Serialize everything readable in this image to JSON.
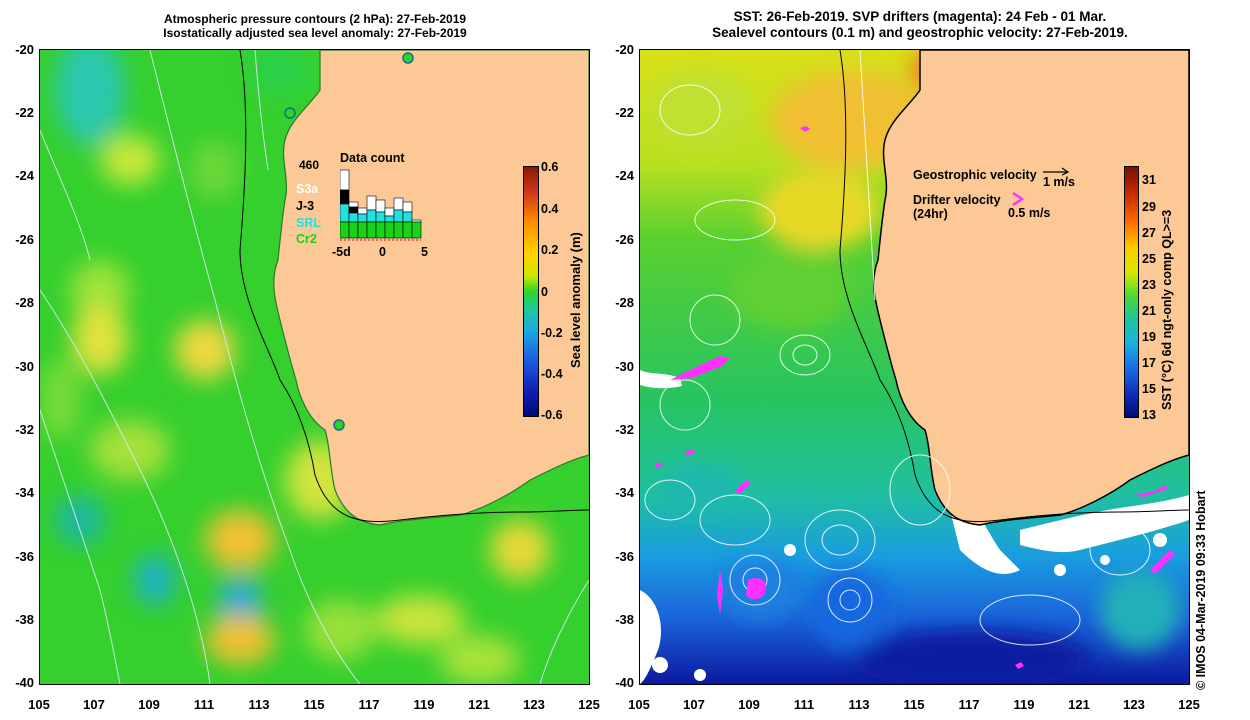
{
  "left_panel": {
    "title_line1": "Atmospheric pressure contours (2 hPa): 27-Feb-2019",
    "title_line2": "Isostatically adjusted sea level anomaly: 27-Feb-2019",
    "colorbar_label": "Sea level anomaly (m)",
    "colorbar_ticks": [
      "0.6",
      "0.4",
      "0.2",
      "0",
      "-0.2",
      "-0.4",
      "-0.6"
    ],
    "data_count": {
      "title": "Data count",
      "total": "460",
      "sources": [
        {
          "label": "S3a",
          "color": "#ffffff"
        },
        {
          "label": "J-3",
          "color": "#000000"
        },
        {
          "label": "SRL",
          "color": "#22e0e0"
        },
        {
          "label": "Cr2",
          "color": "#18d418"
        }
      ],
      "axis_labels": [
        "-5d",
        "0",
        "5"
      ]
    }
  },
  "right_panel": {
    "title_line1": "SST: 26-Feb-2019. SVP drifters (magenta): 24 Feb - 01 Mar.",
    "title_line2": "Sealevel contours (0.1 m) and geostrophic velocity: 27-Feb-2019.",
    "geostrophic_label": "Geostrophic velocity",
    "geostrophic_scale": "1 m/s",
    "drifter_label_line1": "Drifter velocity",
    "drifter_label_line2": "(24hr)",
    "drifter_scale": "0.5 m/s",
    "colorbar_label": "SST (°C) 6d ngt-only comp QL>=3",
    "colorbar_ticks": [
      "31",
      "29",
      "27",
      "25",
      "23",
      "21",
      "19",
      "17",
      "15",
      "13"
    ]
  },
  "y_axis_labels": [
    "-20",
    "-22",
    "-24",
    "-26",
    "-28",
    "-30",
    "-32",
    "-34",
    "-36",
    "-38",
    "-40"
  ],
  "x_axis_labels": [
    "105",
    "107",
    "109",
    "111",
    "113",
    "115",
    "117",
    "119",
    "121",
    "123",
    "125"
  ],
  "credit": "© IMOS 04-Mar-2019 09:33 Hobart",
  "colors": {
    "land": "#fbc896",
    "sla_base": "#2ed42e",
    "outline": "#000000"
  }
}
